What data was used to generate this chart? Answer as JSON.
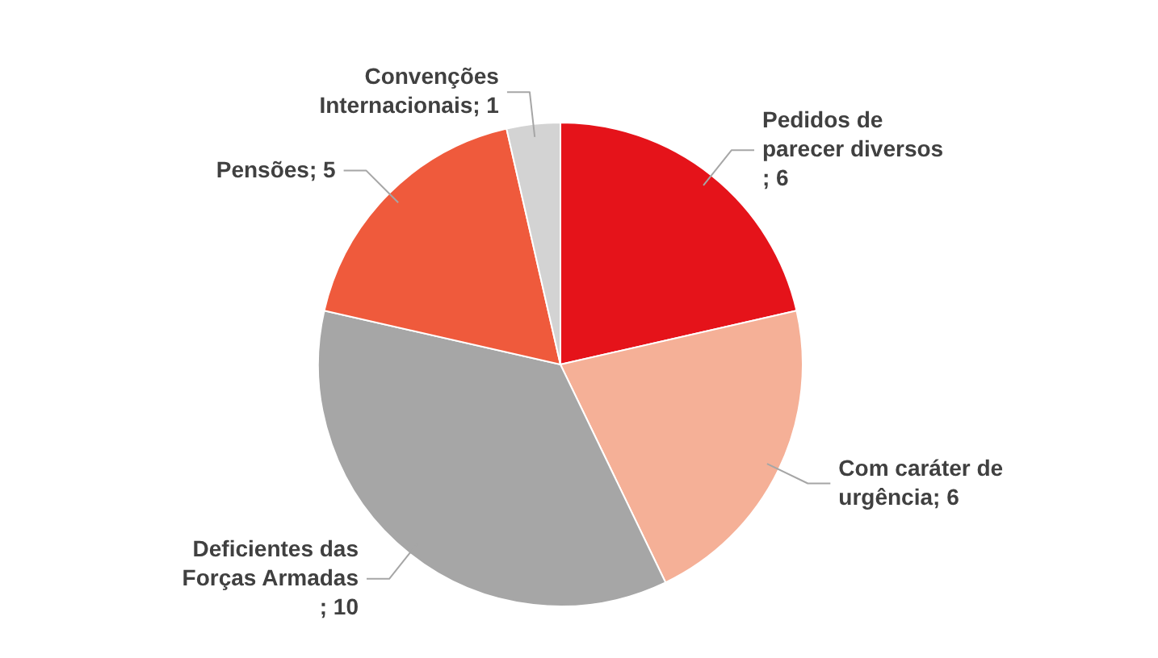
{
  "chart_data": {
    "type": "pie",
    "categories": [
      "Pedidos de parecer diversos",
      "Com caráter de urgência",
      "Deficientes das Forças Armadas",
      "Pensões",
      "Convenções Internacionais"
    ],
    "values": [
      6,
      6,
      10,
      5,
      1
    ],
    "colors": [
      "#e5131a",
      "#f5b097",
      "#a6a6a6",
      "#ef5a3c",
      "#d3d3d3"
    ],
    "value_labels": [
      "; 6",
      "; 6",
      "; 10",
      "; 5",
      "; 1"
    ]
  }
}
